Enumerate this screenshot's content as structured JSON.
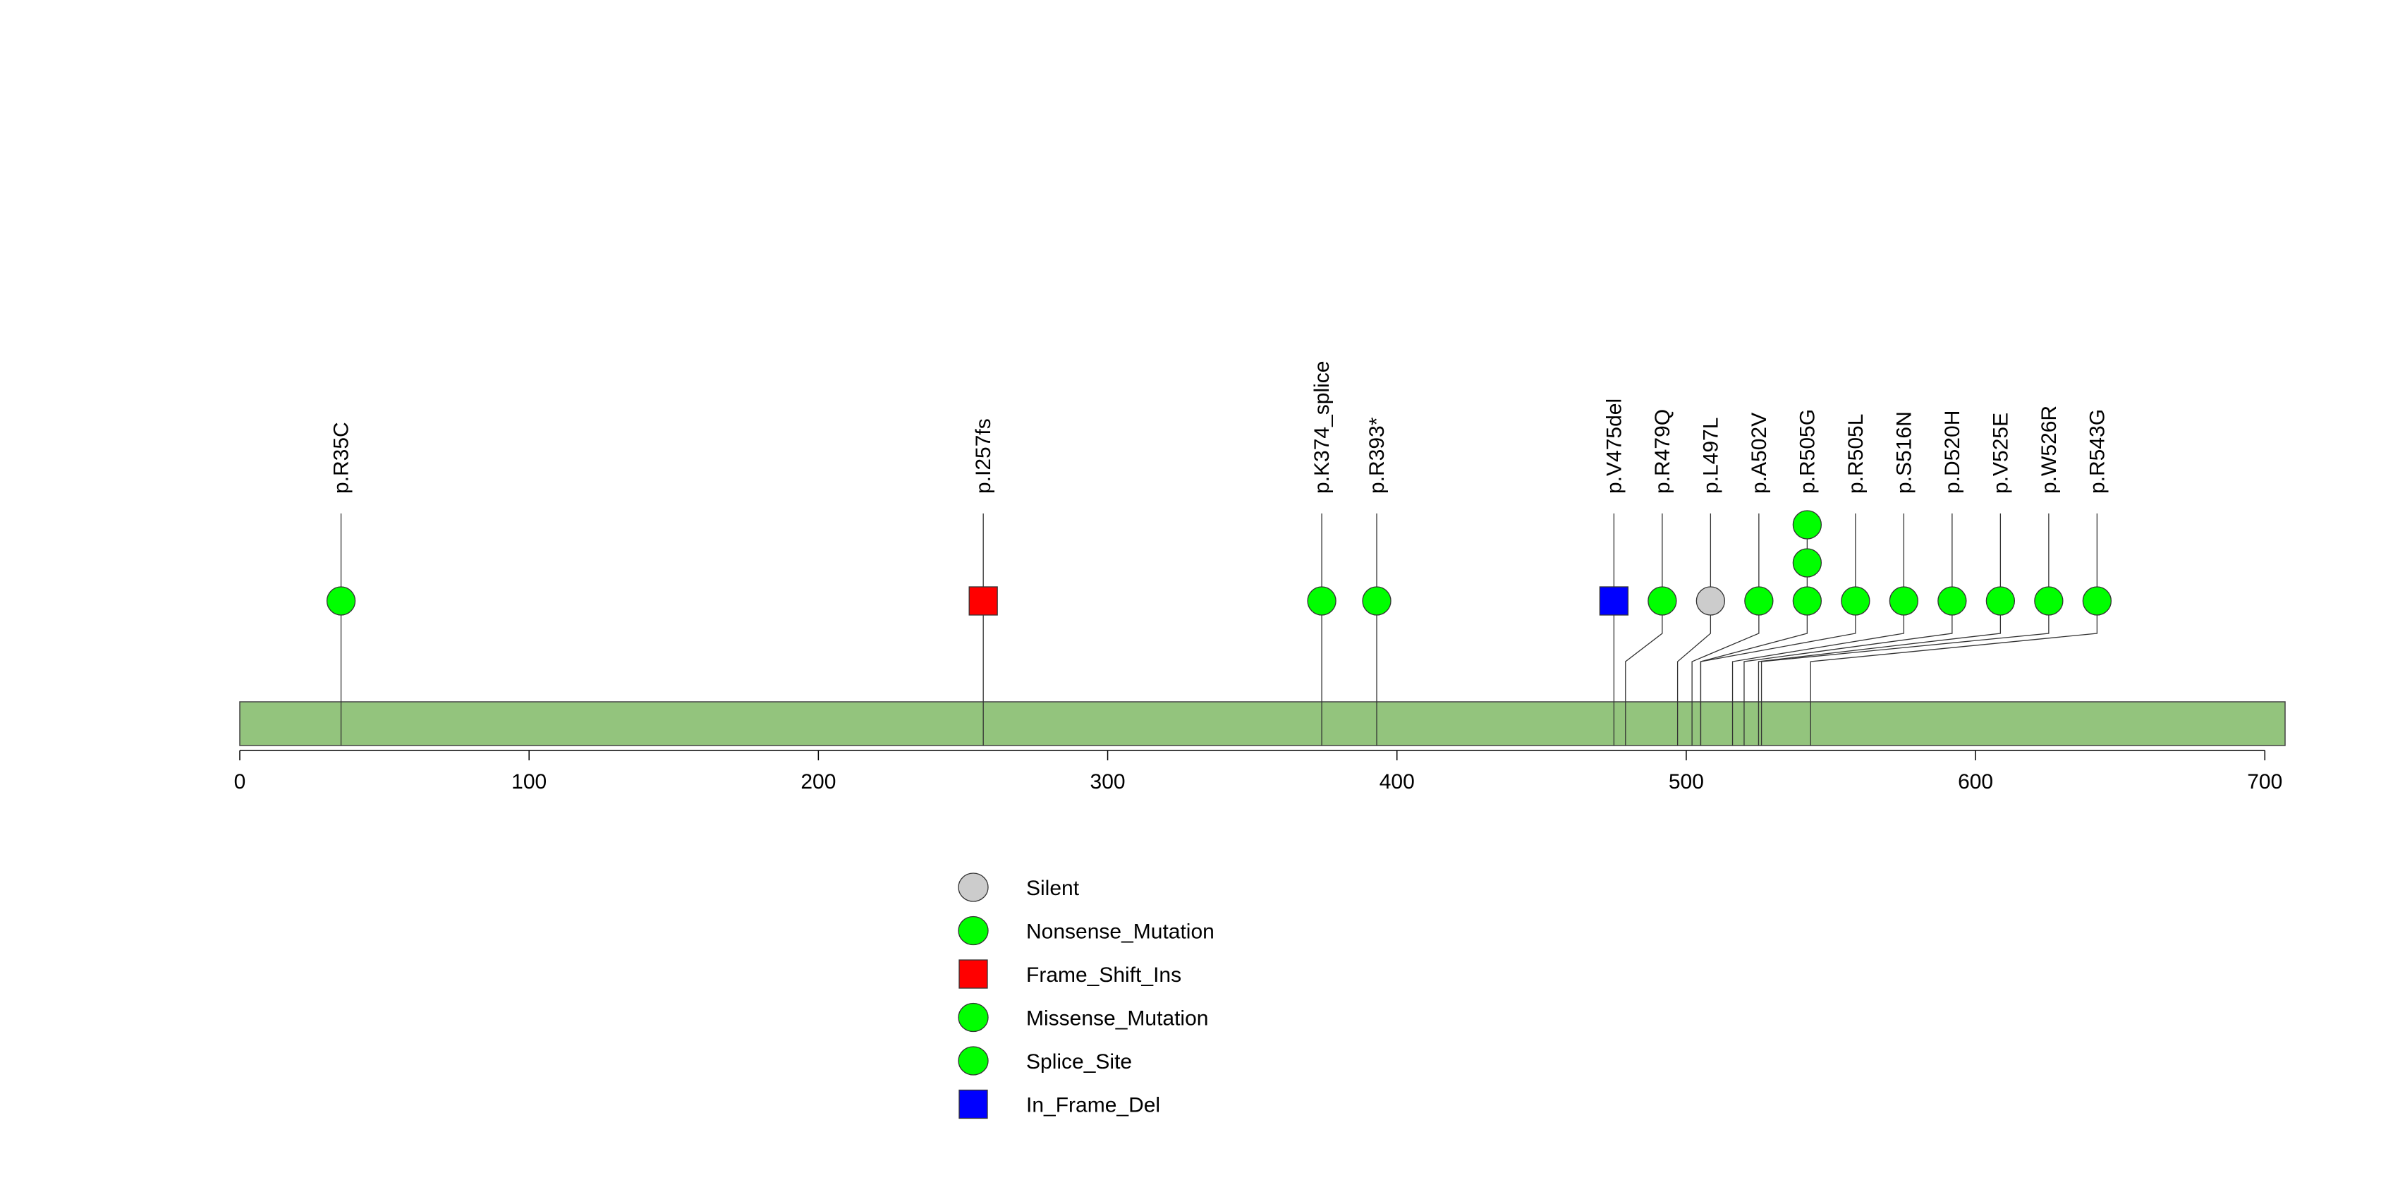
{
  "chart_data": {
    "type": "lollipop",
    "title": "",
    "xlabel": "",
    "ylabel": "",
    "xlim": [
      0,
      707
    ],
    "x_ticks": [
      "0",
      "100",
      "200",
      "300",
      "400",
      "500",
      "600",
      "700"
    ],
    "protein_length": 707,
    "colors": {
      "protein_bar": "#93c47d",
      "Silent": "#cccccc",
      "Nonsense_Mutation": "#00ff00",
      "Frame_Shift_Ins": "#ff0000",
      "Missense_Mutation": "#00ff00",
      "Splice_Site": "#00ff00",
      "In_Frame_Del": "#0000ff"
    },
    "mutations": [
      {
        "label": "p.R35C",
        "position": 35,
        "type": "Missense_Mutation",
        "count": 1
      },
      {
        "label": "p.I257fs",
        "position": 257,
        "type": "Frame_Shift_Ins",
        "count": 1
      },
      {
        "label": "p.K374_splice",
        "position": 374,
        "type": "Splice_Site",
        "count": 1
      },
      {
        "label": "p.R393*",
        "position": 393,
        "type": "Nonsense_Mutation",
        "count": 1
      },
      {
        "label": "p.V475del",
        "position": 475,
        "type": "In_Frame_Del",
        "count": 1
      },
      {
        "label": "p.R479Q",
        "position": 479,
        "type": "Missense_Mutation",
        "count": 1
      },
      {
        "label": "p.L497L",
        "position": 497,
        "type": "Silent",
        "count": 1
      },
      {
        "label": "p.A502V",
        "position": 502,
        "type": "Missense_Mutation",
        "count": 1
      },
      {
        "label": "p.R505G",
        "position": 505,
        "type": "Missense_Mutation",
        "count": 3
      },
      {
        "label": "p.R505L",
        "position": 505,
        "type": "Missense_Mutation",
        "count": 1
      },
      {
        "label": "p.S516N",
        "position": 516,
        "type": "Missense_Mutation",
        "count": 1
      },
      {
        "label": "p.D520H",
        "position": 520,
        "type": "Missense_Mutation",
        "count": 1
      },
      {
        "label": "p.V525E",
        "position": 525,
        "type": "Missense_Mutation",
        "count": 1
      },
      {
        "label": "p.W526R",
        "position": 526,
        "type": "Missense_Mutation",
        "count": 1
      },
      {
        "label": "p.R543G",
        "position": 543,
        "type": "Missense_Mutation",
        "count": 1
      }
    ],
    "legend": {
      "placement": "bottom-center",
      "entries": [
        {
          "label": "Silent",
          "shape": "circle",
          "type": "Silent"
        },
        {
          "label": "Nonsense_Mutation",
          "shape": "circle",
          "type": "Nonsense_Mutation"
        },
        {
          "label": "Frame_Shift_Ins",
          "shape": "square",
          "type": "Frame_Shift_Ins"
        },
        {
          "label": "Missense_Mutation",
          "shape": "circle",
          "type": "Missense_Mutation"
        },
        {
          "label": "Splice_Site",
          "shape": "circle",
          "type": "Splice_Site"
        },
        {
          "label": "In_Frame_Del",
          "shape": "square",
          "type": "In_Frame_Del"
        }
      ]
    }
  }
}
